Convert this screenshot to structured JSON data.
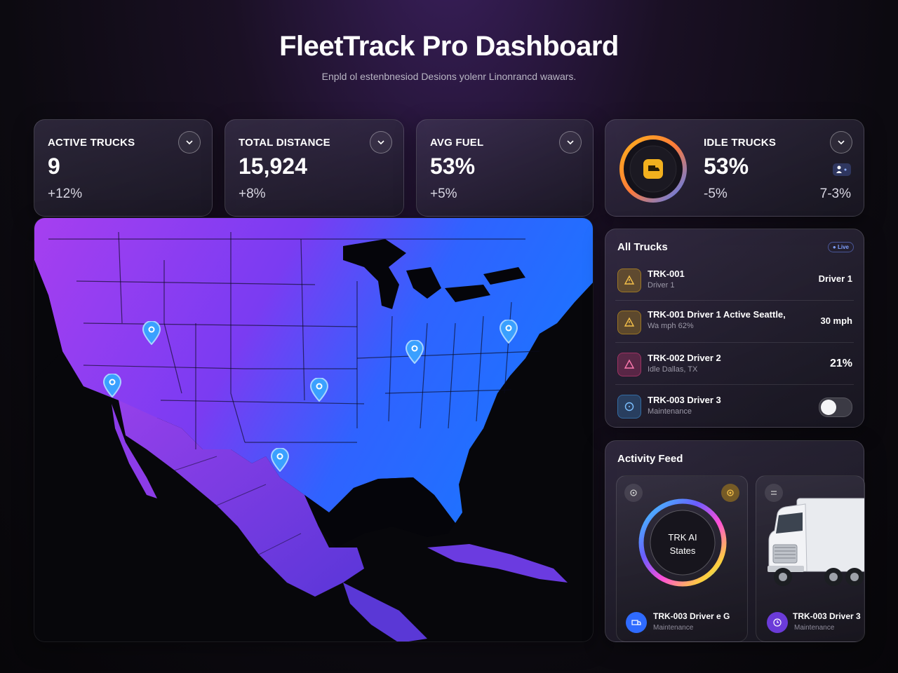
{
  "header": {
    "title": "FleetTrack Pro Dashboard",
    "subtitle": "Enpld ol estenbnesiod Desions yolenr Linonrancd wawars."
  },
  "stats": [
    {
      "label": "ACTIVE TRUCKS",
      "value": "9",
      "delta": "+12%"
    },
    {
      "label": "TOTAL DISTANCE",
      "value": "15,924",
      "delta": "+8%"
    },
    {
      "label": "AVG FUEL",
      "value": "53%",
      "delta": "+5%"
    },
    {
      "label": "IDLE TRUCKS",
      "value": "53%",
      "delta": "-5%",
      "secondary": "7-3%"
    }
  ],
  "trucks_list": {
    "title": "All Trucks",
    "badge": "Live",
    "rows": [
      {
        "name": "TRK-001",
        "sub": "Driver 1",
        "right": "Driver 1",
        "icon": "warning-icon",
        "color": "#d8a21c"
      },
      {
        "name": "TRK-001 Driver 1 Active Seattle,",
        "sub": "Wa mph 62%",
        "right": "30 mph",
        "icon": "warning-icon",
        "color": "#d8a21c"
      },
      {
        "name": "TRK-002 Driver 2",
        "sub": "Idle Dallas, TX",
        "right": "21%",
        "icon": "alert-icon",
        "color": "#d33c7a"
      },
      {
        "name": "TRK-003 Driver 3",
        "sub": "Maintenance",
        "icon": "clock-icon",
        "color": "#3a8fd8",
        "toggle_on": false
      }
    ]
  },
  "activity": {
    "title": "Activity Feed",
    "cards": [
      {
        "ring_line1": "TRK AI",
        "ring_line2": "States",
        "name": "TRK-003 Driver e G",
        "sub": "Maintenance"
      },
      {
        "name": "TRK-003 Driver 3",
        "sub": "Maintenance"
      }
    ]
  },
  "colors": {
    "accent_purple": "#9b3df0",
    "accent_blue": "#2f6bff",
    "warning": "#d8a21c",
    "danger": "#d33c7a",
    "info": "#3a8fd8"
  }
}
